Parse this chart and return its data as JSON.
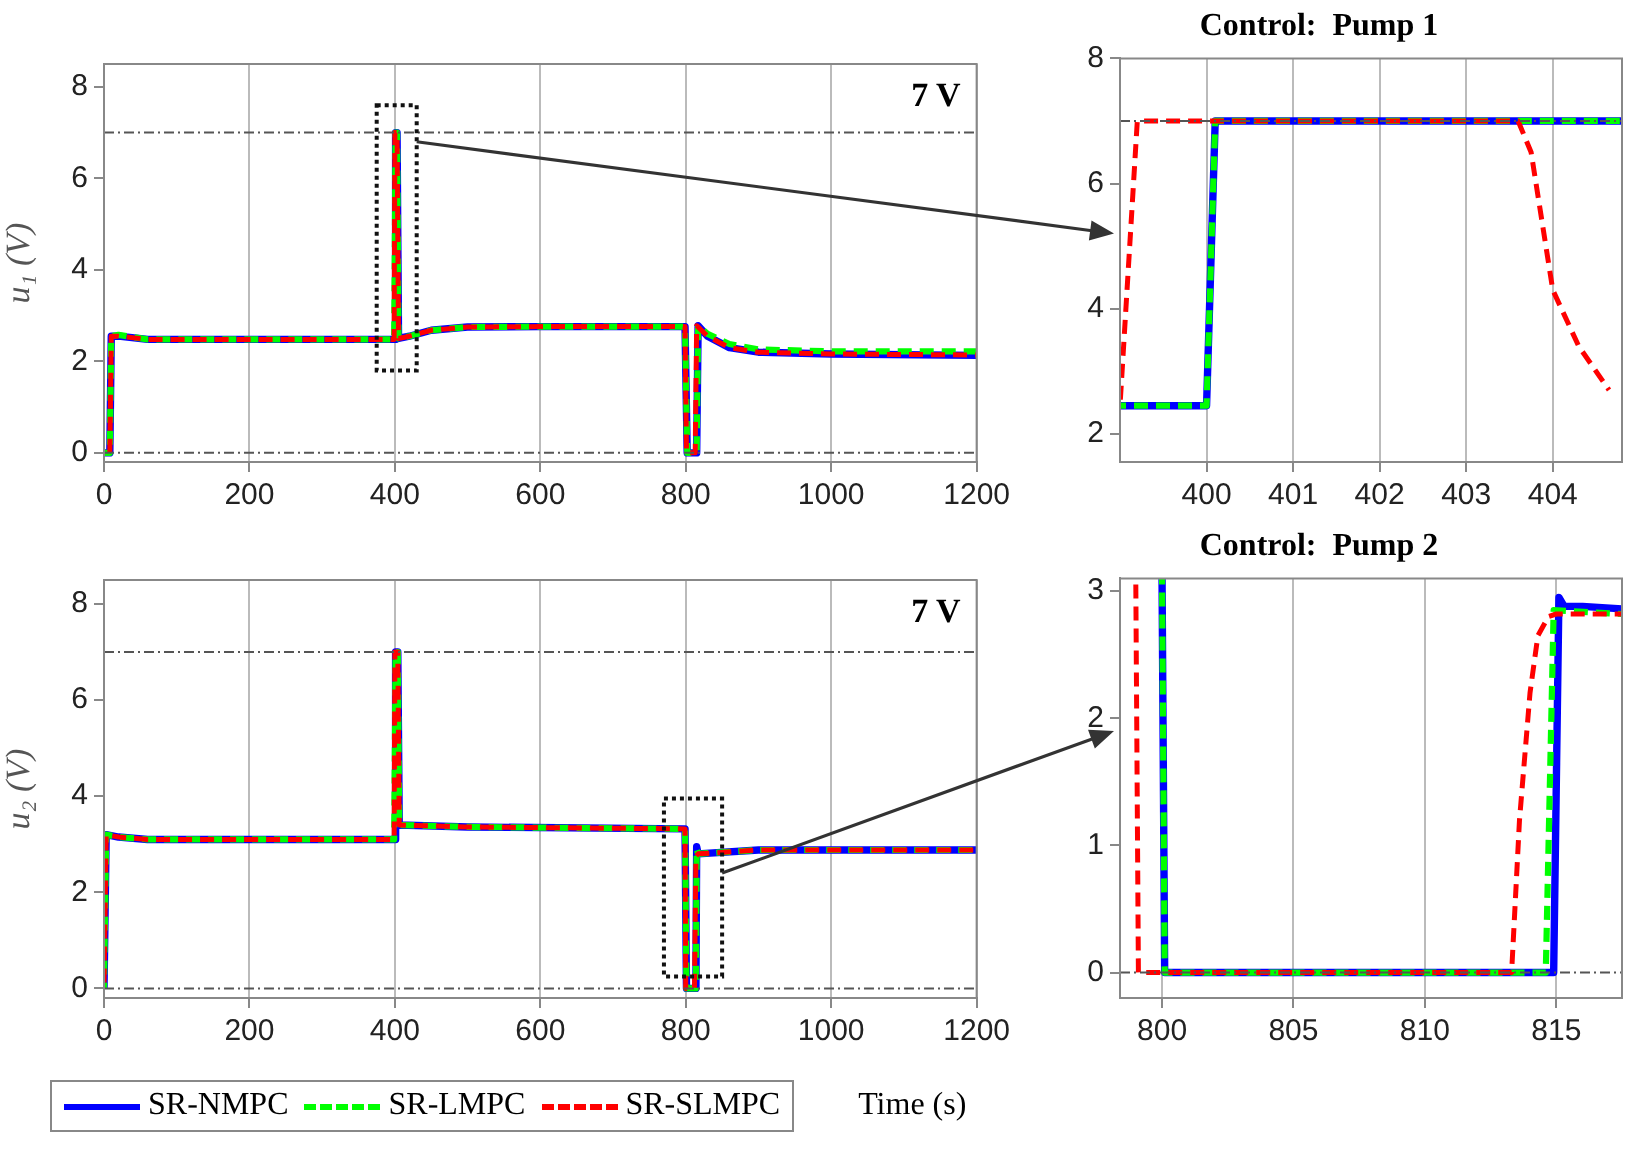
{
  "chart_data": [
    {
      "type": "line",
      "ylabel": "u₁ (V)",
      "xlim": [
        0,
        1200
      ],
      "xticks": [
        0,
        200,
        400,
        600,
        800,
        1000,
        1200
      ],
      "ylim": [
        -0.2,
        8.5
      ],
      "yticks": [
        0,
        2,
        4,
        6,
        8
      ],
      "grid": "x",
      "marker": "none",
      "annotations": [
        "7 V"
      ],
      "ref_lines": [
        {
          "axis": "y",
          "value": 7,
          "color": "#555555"
        },
        {
          "axis": "y",
          "value": 0,
          "color": "#555555"
        }
      ],
      "series": [
        {
          "color": "#0000ff",
          "line_style": "solid",
          "x": [
            0,
            8,
            10,
            20,
            60,
            399,
            401,
            403,
            405,
            420,
            450,
            500,
            600,
            799,
            802,
            815,
            817,
            830,
            860,
            900,
            1000,
            1200
          ],
          "values": [
            0,
            0,
            2.55,
            2.55,
            2.48,
            2.48,
            7,
            7,
            2.5,
            2.55,
            2.68,
            2.75,
            2.76,
            2.76,
            0,
            0,
            2.78,
            2.55,
            2.3,
            2.2,
            2.16,
            2.13
          ]
        },
        {
          "color": "#00ff00",
          "line_style": "dashed",
          "x": [
            0,
            8,
            10,
            20,
            60,
            399,
            401,
            403,
            405,
            420,
            450,
            500,
            600,
            799,
            802,
            815,
            817,
            830,
            860,
            900,
            1000,
            1200
          ],
          "values": [
            0,
            0,
            2.55,
            2.58,
            2.48,
            2.48,
            7,
            7,
            2.5,
            2.55,
            2.68,
            2.75,
            2.76,
            2.76,
            0,
            0,
            2.78,
            2.6,
            2.38,
            2.26,
            2.22,
            2.22
          ]
        },
        {
          "color": "#ff0000",
          "line_style": "dashed",
          "x": [
            0,
            8,
            10,
            20,
            60,
            399,
            400,
            403,
            405,
            420,
            450,
            500,
            600,
            799,
            801,
            813,
            815,
            830,
            860,
            900,
            1000,
            1200
          ],
          "values": [
            0,
            0,
            2.55,
            2.55,
            2.48,
            2.48,
            7,
            7,
            2.5,
            2.55,
            2.68,
            2.75,
            2.76,
            2.76,
            0,
            0,
            2.78,
            2.55,
            2.3,
            2.2,
            2.16,
            2.14
          ]
        }
      ]
    },
    {
      "type": "line",
      "title": "Control:  Pump 1",
      "xlim": [
        399,
        404.8
      ],
      "xticks": [
        400,
        401,
        402,
        403,
        404
      ],
      "ylim": [
        1.55,
        8
      ],
      "yticks": [
        2,
        4,
        6,
        8
      ],
      "grid": "x",
      "marker": "none",
      "ref_lines": [
        {
          "axis": "y",
          "value": 7,
          "color": "#555555"
        }
      ],
      "series": [
        {
          "color": "#0000ff",
          "line_style": "solid",
          "x": [
            399,
            400,
            400.1,
            404.8
          ],
          "values": [
            2.45,
            2.45,
            7,
            7
          ]
        },
        {
          "color": "#00ff00",
          "line_style": "dashed",
          "x": [
            399,
            400,
            400.1,
            404.8
          ],
          "values": [
            2.45,
            2.45,
            7,
            7
          ]
        },
        {
          "color": "#ff0000",
          "line_style": "dashed",
          "x": [
            399,
            399.2,
            403.6,
            403.75,
            404,
            404.3,
            404.65
          ],
          "values": [
            2.45,
            7,
            7,
            6.5,
            4.3,
            3.4,
            2.7
          ]
        }
      ]
    },
    {
      "type": "line",
      "ylabel": "u₂ (V)",
      "xlabel": "Time (s)",
      "legend": "bottom left",
      "xlim": [
        0,
        1200
      ],
      "xticks": [
        0,
        200,
        400,
        600,
        800,
        1000,
        1200
      ],
      "ylim": [
        -0.2,
        8.5
      ],
      "yticks": [
        0,
        2,
        4,
        6,
        8
      ],
      "grid": "x",
      "marker": "none",
      "annotations": [
        "7 V"
      ],
      "ref_lines": [
        {
          "axis": "y",
          "value": 7,
          "color": "#555555"
        },
        {
          "axis": "y",
          "value": 0,
          "color": "#555555"
        }
      ],
      "series": [
        {
          "name": "SR-NMPC",
          "color": "#0000ff",
          "line_style": "solid",
          "x": [
            0,
            3,
            20,
            60,
            399,
            401,
            404,
            406,
            500,
            799,
            801,
            814,
            815,
            817,
            900,
            1200
          ],
          "values": [
            0,
            3.2,
            3.15,
            3.1,
            3.1,
            7,
            7,
            3.4,
            3.36,
            3.32,
            0,
            0,
            2.95,
            2.8,
            2.88,
            2.88
          ]
        },
        {
          "name": "SR-LMPC",
          "color": "#00ff00",
          "line_style": "dashed",
          "x": [
            0,
            3,
            20,
            60,
            399,
            401,
            404,
            406,
            500,
            799,
            801,
            814,
            815,
            817,
            900,
            1200
          ],
          "values": [
            0,
            3.2,
            3.15,
            3.1,
            3.1,
            7,
            7,
            3.4,
            3.36,
            3.32,
            0,
            0,
            2.9,
            2.8,
            2.88,
            2.88
          ]
        },
        {
          "name": "SR-SLMPC",
          "color": "#ff0000",
          "line_style": "dashed",
          "x": [
            0,
            3,
            20,
            60,
            399,
            400,
            404,
            406,
            500,
            799,
            800,
            812,
            814,
            817,
            900,
            1200
          ],
          "values": [
            0,
            3.2,
            3.15,
            3.1,
            3.1,
            7,
            7,
            3.4,
            3.36,
            3.32,
            0,
            0,
            2.75,
            2.8,
            2.88,
            2.88
          ]
        }
      ]
    },
    {
      "type": "line",
      "title": "Control:  Pump 2",
      "xlim": [
        798.4,
        817.5
      ],
      "xticks": [
        800,
        805,
        810,
        815
      ],
      "ylim": [
        -0.2,
        3.1
      ],
      "yticks": [
        0,
        1,
        2,
        3
      ],
      "grid": "x",
      "marker": "none",
      "ref_lines": [
        {
          "axis": "y",
          "value": 0,
          "color": "#555555"
        }
      ],
      "series": [
        {
          "color": "#0000ff",
          "line_style": "solid",
          "x": [
            800,
            800.1,
            814.9,
            815.1,
            815.3,
            816,
            817.5
          ],
          "values": [
            3.1,
            0,
            0,
            2.95,
            2.88,
            2.88,
            2.86
          ]
        },
        {
          "color": "#00ff00",
          "line_style": "dashed",
          "x": [
            800,
            800.1,
            814.6,
            814.9,
            817.5
          ],
          "values": [
            3.1,
            0,
            0,
            2.85,
            2.82
          ]
        },
        {
          "color": "#ff0000",
          "line_style": "dashed",
          "x": [
            799,
            799.1,
            813.3,
            813.6,
            814,
            814.3,
            814.7,
            815,
            817.5
          ],
          "values": [
            3.1,
            0,
            0,
            1.2,
            2.2,
            2.65,
            2.8,
            2.82,
            2.82
          ]
        }
      ]
    }
  ]
}
